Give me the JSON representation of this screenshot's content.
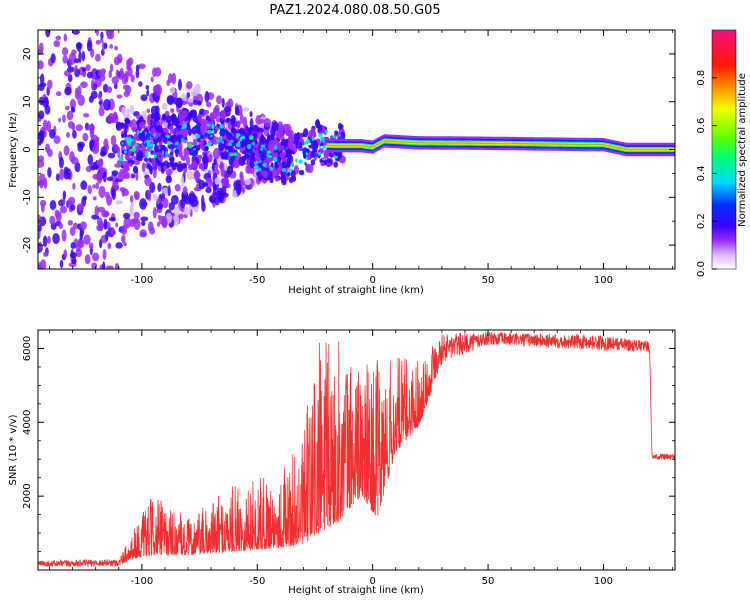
{
  "title": "PAZ1.2024.080.08.50.G05",
  "chart_data": [
    {
      "type": "heatmap",
      "xlabel": "Height of straight line (km)",
      "ylabel": "Frequency (Hz)",
      "xlim": [
        -145,
        131
      ],
      "ylim": [
        -25,
        25
      ],
      "xticks": [
        -100,
        -50,
        0,
        50,
        100
      ],
      "yticks": [
        -20,
        -10,
        0,
        10,
        20
      ],
      "colorbar": {
        "label": "Normalized spectral amplitude",
        "range": [
          0,
          1
        ],
        "ticks": [
          0.0,
          0.2,
          0.4,
          0.6,
          0.8
        ],
        "colormap": [
          "#ffffff",
          "#d8b8ff",
          "#9a2cff",
          "#3a00ff",
          "#0030ff",
          "#00d8ff",
          "#00ff70",
          "#60ff00",
          "#f0ff00",
          "#ff9000",
          "#ff1800",
          "#f01080"
        ]
      },
      "ridge": {
        "description_points": [
          {
            "x": -110,
            "f": 0.0
          },
          {
            "x": -90,
            "f": 1.5
          },
          {
            "x": -70,
            "f": 2.5
          },
          {
            "x": -55,
            "f": 0.5
          },
          {
            "x": -45,
            "f": -2.5
          },
          {
            "x": -35,
            "f": -2.0
          },
          {
            "x": -25,
            "f": 1.0
          },
          {
            "x": -15,
            "f": 0.8
          },
          {
            "x": -5,
            "f": 0.8
          },
          {
            "x": 0,
            "f": 0.5
          },
          {
            "x": 5,
            "f": 1.8
          },
          {
            "x": 20,
            "f": 1.4
          },
          {
            "x": 50,
            "f": 1.3
          },
          {
            "x": 100,
            "f": 1.0
          },
          {
            "x": 110,
            "f": 0.0
          },
          {
            "x": 131,
            "f": 0.0
          }
        ]
      }
    },
    {
      "type": "line",
      "xlabel": "Height of straight line (km)",
      "ylabel": "SNR (10 * v/v)",
      "xlim": [
        -145,
        131
      ],
      "ylim": [
        0,
        6500
      ],
      "xticks": [
        -100,
        -50,
        0,
        50,
        100
      ],
      "yticks": [
        2000,
        4000,
        6000
      ],
      "color": "#f03030",
      "envelope": [
        {
          "x": -145,
          "base": 80,
          "peak": 250
        },
        {
          "x": -110,
          "base": 100,
          "peak": 300
        },
        {
          "x": -105,
          "base": 300,
          "peak": 1000
        },
        {
          "x": -95,
          "base": 400,
          "peak": 2050
        },
        {
          "x": -80,
          "base": 400,
          "peak": 1400
        },
        {
          "x": -60,
          "base": 500,
          "peak": 2300
        },
        {
          "x": -40,
          "base": 600,
          "peak": 2700
        },
        {
          "x": -30,
          "base": 700,
          "peak": 3500
        },
        {
          "x": -25,
          "base": 900,
          "peak": 6400
        },
        {
          "x": -15,
          "base": 1300,
          "peak": 6300
        },
        {
          "x": -5,
          "base": 2000,
          "peak": 5600
        },
        {
          "x": 2,
          "base": 1400,
          "peak": 5700
        },
        {
          "x": 10,
          "base": 3200,
          "peak": 5800
        },
        {
          "x": 20,
          "base": 3900,
          "peak": 5800
        },
        {
          "x": 30,
          "base": 5600,
          "peak": 6400
        },
        {
          "x": 50,
          "base": 6100,
          "peak": 6450
        },
        {
          "x": 100,
          "base": 5950,
          "peak": 6350
        },
        {
          "x": 120,
          "base": 5900,
          "peak": 6200
        },
        {
          "x": 121,
          "base": 3000,
          "peak": 3150
        },
        {
          "x": 131,
          "base": 2950,
          "peak": 3150
        }
      ]
    }
  ]
}
